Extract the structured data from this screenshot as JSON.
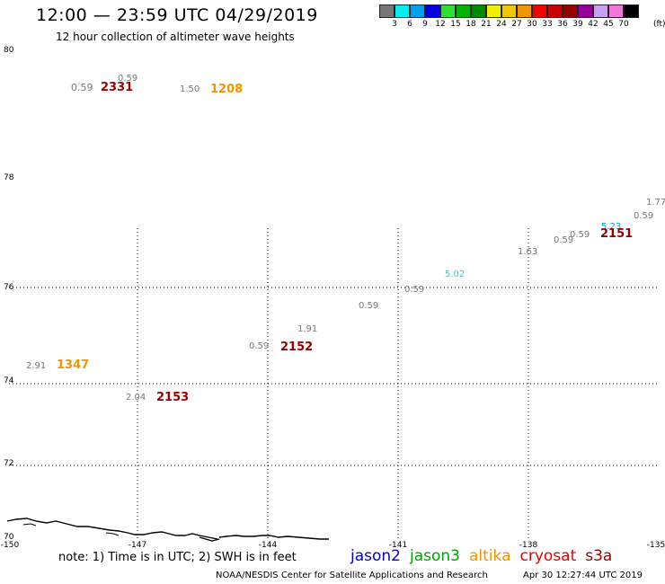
{
  "header": {
    "title": "12:00 — 23:59 UTC 04/29/2019",
    "subtitle": "12 hour collection of altimeter wave heights"
  },
  "legend": {
    "colors": [
      "#777777",
      "#00f0f0",
      "#00a0f0",
      "#0000e0",
      "#30e030",
      "#00b400",
      "#008a00",
      "#f0f000",
      "#f0c800",
      "#f09600",
      "#f00000",
      "#c80000",
      "#960000",
      "#960096",
      "#c8a0f0",
      "#f078d8",
      "#000000"
    ],
    "labels": [
      "3",
      "6",
      "9",
      "12",
      "15",
      "18",
      "21",
      "24",
      "27",
      "30",
      "33",
      "36",
      "39",
      "42",
      "45",
      "70"
    ],
    "unit": "(ft)"
  },
  "map": {
    "lat_labels": [
      "80",
      "78",
      "76",
      "74",
      "72",
      "70"
    ],
    "lon_labels": [
      "-150",
      "-147",
      "-144",
      "-141",
      "-138",
      "-135"
    ],
    "coast_color": "#000000",
    "grid_color": "#000000"
  },
  "observations": [
    {
      "text": "0.59",
      "color": "#777777"
    },
    {
      "text": "0.59",
      "color": "#777777"
    },
    {
      "text": "2331",
      "color": "#960000"
    },
    {
      "text": "1.50",
      "color": "#777777"
    },
    {
      "text": "1208",
      "color": "#f09600"
    },
    {
      "text": "1.77",
      "color": "#777777"
    },
    {
      "text": "0.59",
      "color": "#777777"
    },
    {
      "text": "5.23",
      "color": "#00a0f0"
    },
    {
      "text": "2151",
      "color": "#960000"
    },
    {
      "text": "0.59",
      "color": "#777777"
    },
    {
      "text": "0.59",
      "color": "#777777"
    },
    {
      "text": "1.63",
      "color": "#777777"
    },
    {
      "text": "5.02",
      "color": "#00e0f0"
    },
    {
      "text": "0.59",
      "color": "#777777"
    },
    {
      "text": "0.59",
      "color": "#777777"
    },
    {
      "text": "1.91",
      "color": "#777777"
    },
    {
      "text": "0.59",
      "color": "#777777"
    },
    {
      "text": "2152",
      "color": "#960000"
    },
    {
      "text": "2.91",
      "color": "#777777"
    },
    {
      "text": "1347",
      "color": "#f09600"
    },
    {
      "text": "2.04",
      "color": "#777777"
    },
    {
      "text": "2153",
      "color": "#960000"
    }
  ],
  "footer": {
    "note": "note: 1) Time is in UTC; 2) SWH is in feet",
    "satellites": [
      {
        "name": "jason2",
        "color": "#0000d0"
      },
      {
        "name": "jason3",
        "color": "#00a000"
      },
      {
        "name": "altika",
        "color": "#f09600"
      },
      {
        "name": "cryosat",
        "color": "#e00000"
      },
      {
        "name": "s3a",
        "color": "#960000"
      }
    ],
    "credit": "NOAA/NESDIS Center for Satellite Applications and Research",
    "timestamp": "Apr 30 12:27:44 UTC 2019"
  }
}
